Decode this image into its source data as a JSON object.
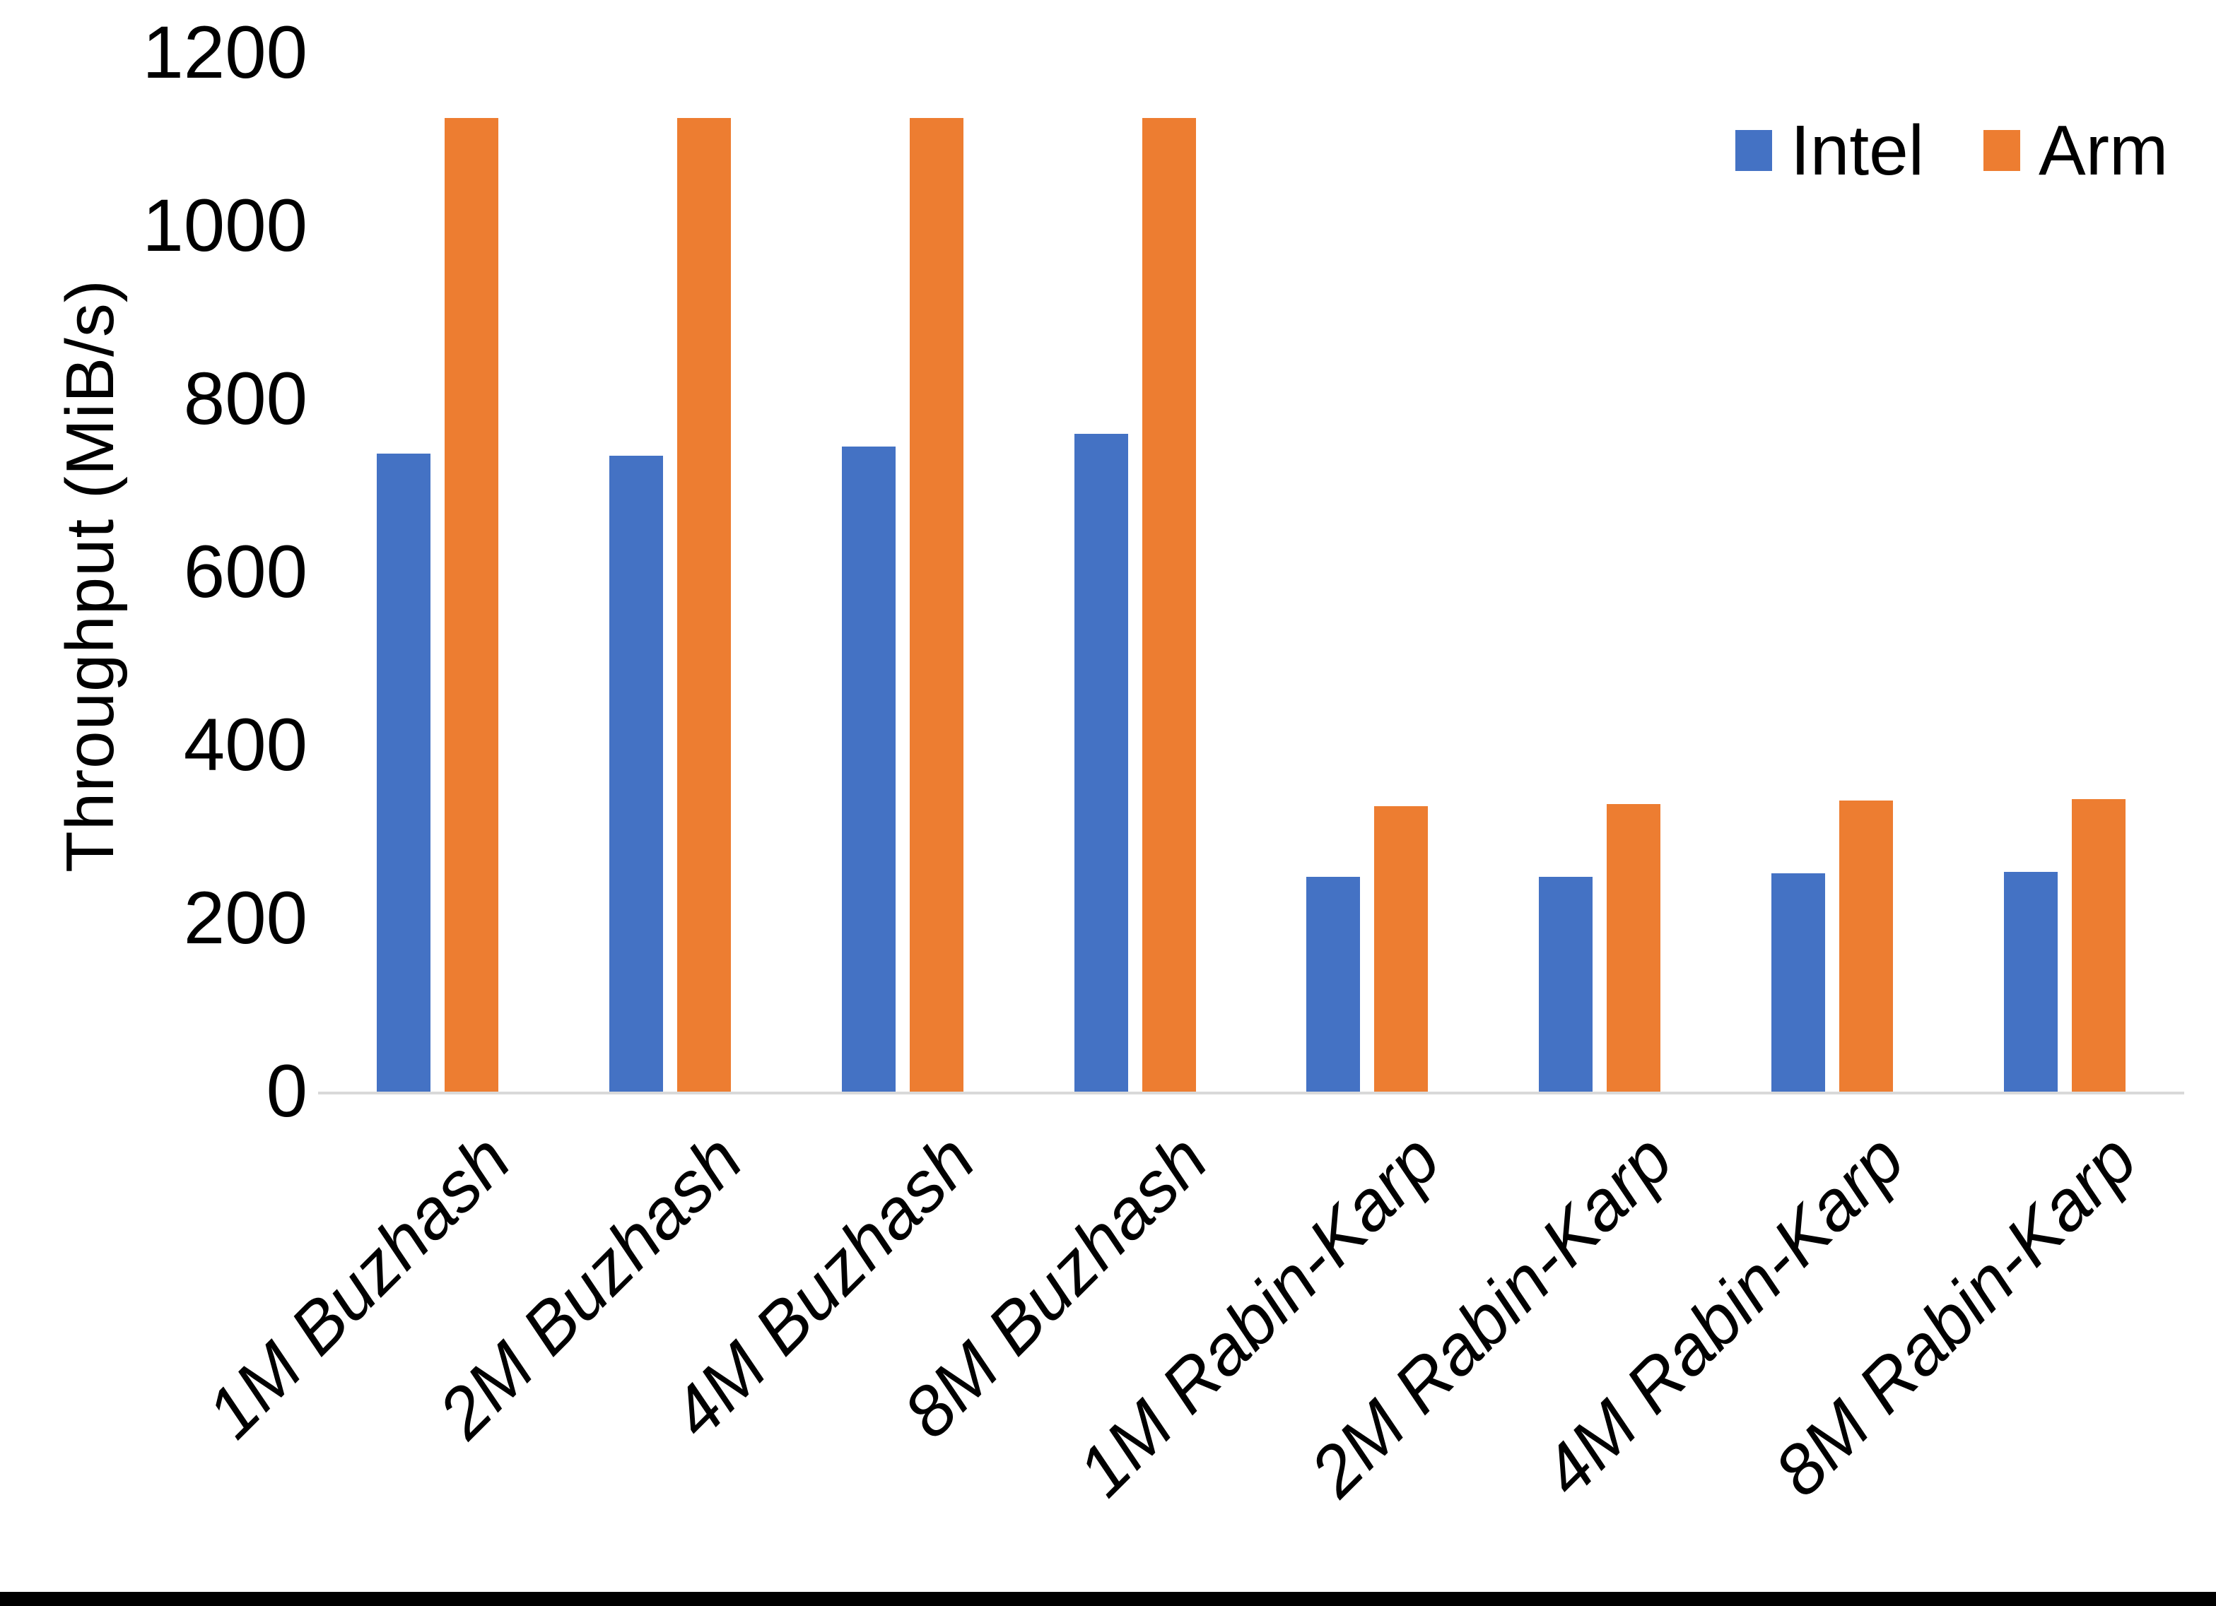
{
  "chart_data": {
    "type": "bar",
    "title": "",
    "xlabel": "",
    "ylabel": "Throughput (MiB/s)",
    "ylim": [
      0,
      1200
    ],
    "yticks": [
      0,
      200,
      400,
      600,
      800,
      1000,
      1200
    ],
    "grid": false,
    "legend_position": "top-right",
    "background": "#ffffff",
    "axis_line_color": "#d9d9d9",
    "text_color": "#000000",
    "categories": [
      "1M Buzhash",
      "2M Buzhash",
      "4M Buzhash",
      "8M Buzhash",
      "1M Rabin-Karp",
      "2M Rabin-Karp",
      "4M Rabin-Karp",
      "8M Rabin-Karp"
    ],
    "series": [
      {
        "name": "Intel",
        "color": "#4472C4",
        "values": [
          737,
          735,
          745,
          760,
          248,
          248,
          252,
          254
        ]
      },
      {
        "name": "Arm",
        "color": "#ED7D31",
        "values": [
          1125,
          1125,
          1125,
          1125,
          330,
          332,
          336,
          338
        ]
      }
    ]
  }
}
